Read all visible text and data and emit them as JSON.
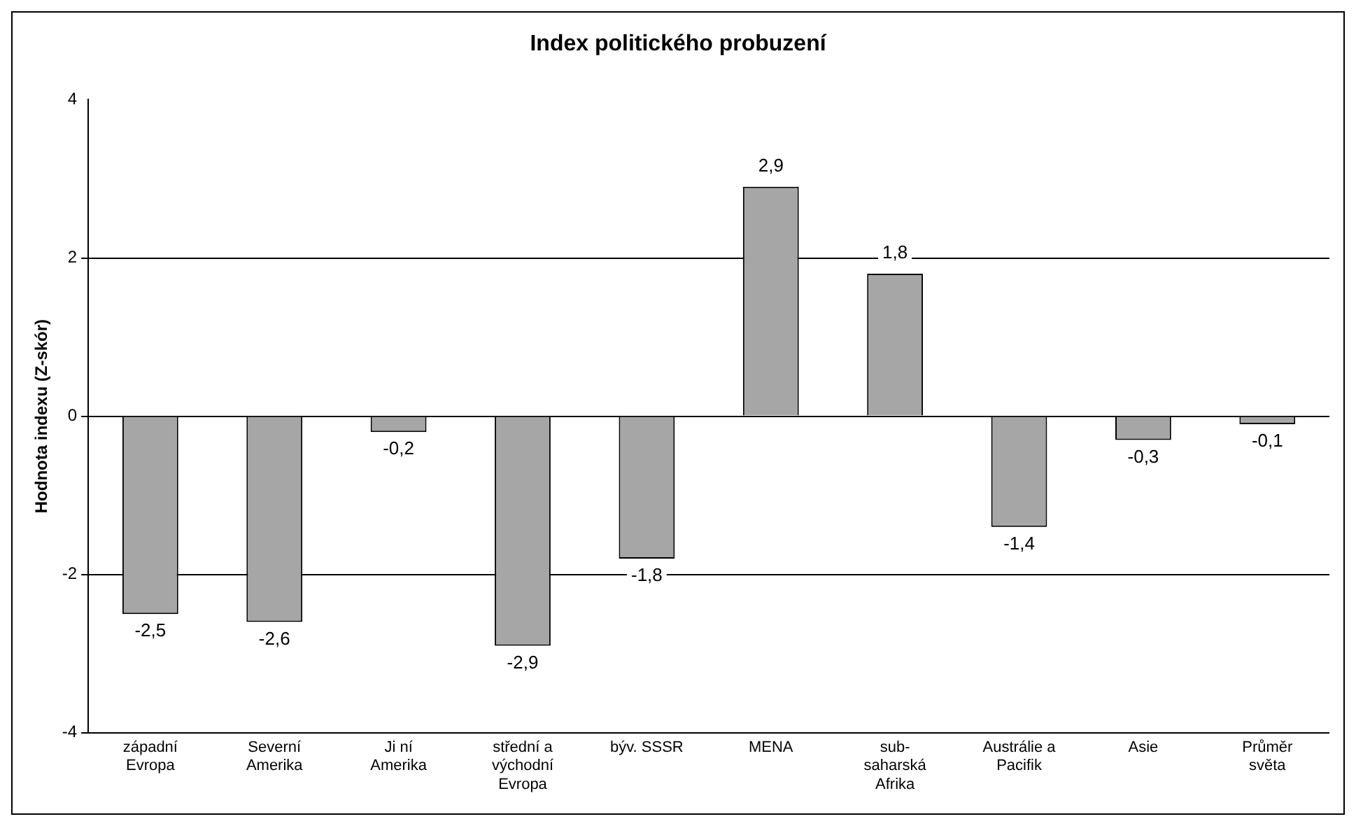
{
  "chart_data": {
    "type": "bar",
    "title": "Index politického probuzení",
    "ylabel": "Hodnota indexu (Z-skór)",
    "categories": [
      "západní Evropa",
      "Severní Amerika",
      "Ji ní Amerika",
      "střední a východní Evropa",
      "býv. SSSR",
      "MENA",
      "sub-saharská Afrika",
      "Austrálie a Pacifik",
      "Asie",
      "Průměr světa"
    ],
    "values": [
      -2.5,
      -2.6,
      -0.2,
      -2.9,
      -1.8,
      2.9,
      1.8,
      -1.4,
      -0.3,
      -0.1
    ],
    "value_labels": [
      "-2,5",
      "-2,6",
      "-0,2",
      "-2,9",
      "-1,8",
      "2,9",
      "1,8",
      "-1,4",
      "-0,3",
      "-0,1"
    ],
    "color": "#a6a6a6",
    "ylim": [
      -4,
      4
    ],
    "yticks": [
      -4,
      -2,
      0,
      2,
      4
    ],
    "grid": "y",
    "legend": false
  }
}
